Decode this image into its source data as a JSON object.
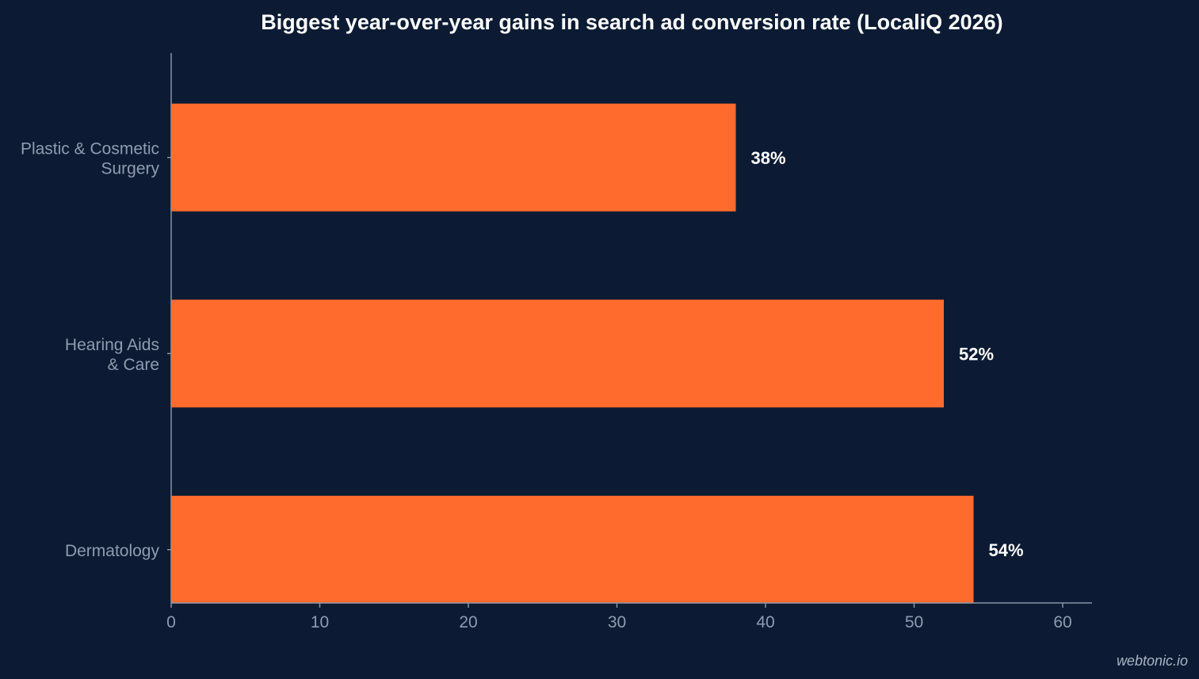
{
  "chart_data": {
    "type": "bar",
    "orientation": "horizontal",
    "title": "Biggest year-over-year gains in search ad conversion rate (LocaliQ 2026)",
    "categories": [
      [
        "Plastic & Cosmetic",
        "Surgery"
      ],
      [
        "Hearing Aids",
        "& Care"
      ],
      [
        "Dermatology"
      ]
    ],
    "values": [
      38,
      52,
      54
    ],
    "data_labels": [
      "38%",
      "52%",
      "54%"
    ],
    "xlim": [
      0,
      62
    ],
    "xticks": [
      0,
      10,
      20,
      30,
      40,
      50,
      60
    ],
    "xtick_labels": [
      "0",
      "10",
      "20",
      "30",
      "40",
      "50",
      "60"
    ],
    "grid": false,
    "legend": false,
    "bar_color": "#ff6b2c",
    "background_color": "#0c1b33"
  },
  "watermark": "webtonic.io"
}
